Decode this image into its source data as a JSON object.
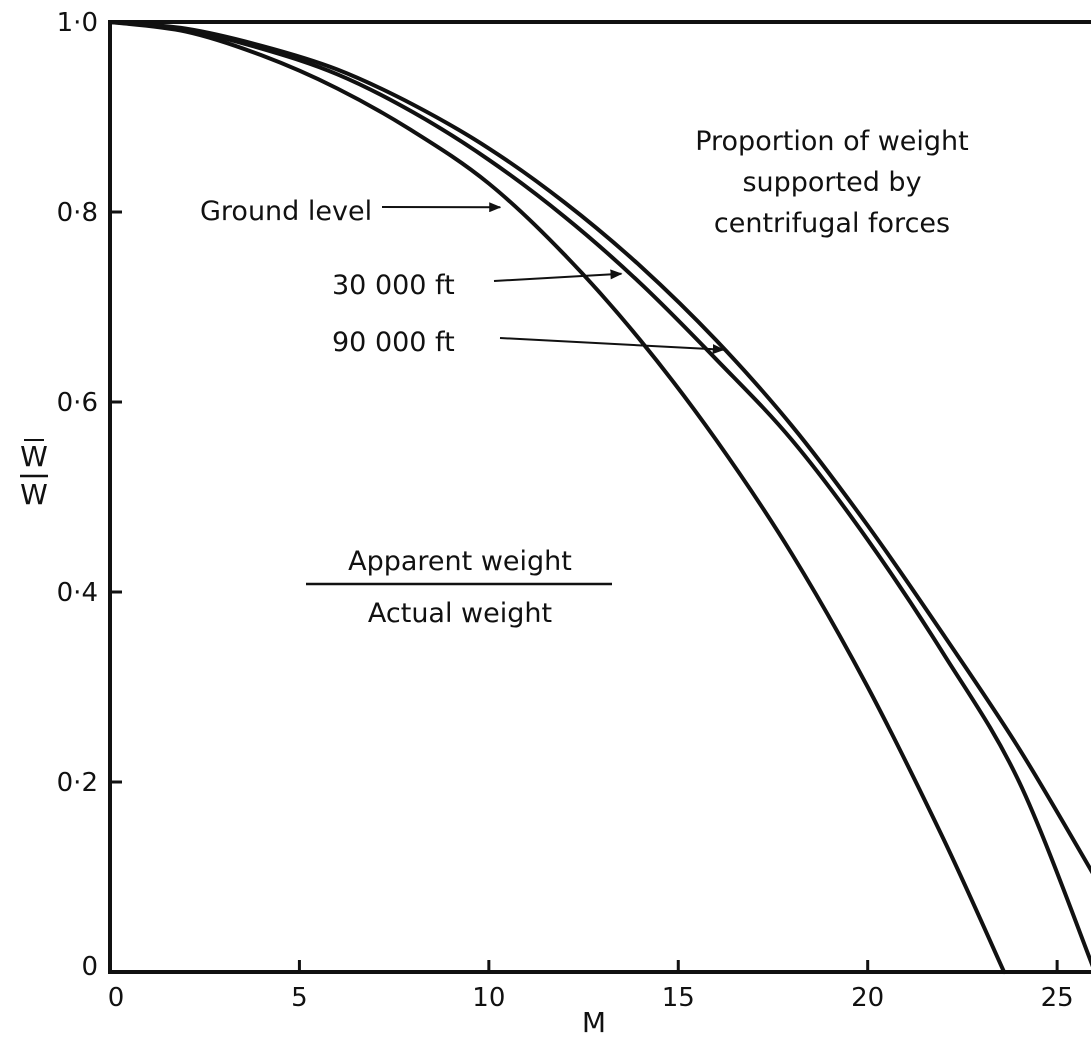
{
  "chart_data": {
    "type": "line",
    "xlabel": "M",
    "ylabel": "W̄/W",
    "ylabel_numerator": "W",
    "ylabel_denominator": "W",
    "xlim": [
      0,
      26
    ],
    "ylim": [
      0,
      1.0
    ],
    "grid": false,
    "legend": "none",
    "x_ticks": [
      0,
      5,
      10,
      15,
      20,
      25
    ],
    "x_tick_labels": [
      "0",
      "5",
      "10",
      "15",
      "20",
      "25"
    ],
    "y_ticks": [
      0,
      0.2,
      0.4,
      0.6,
      0.8,
      1.0
    ],
    "y_tick_labels": [
      "0",
      "0·2",
      "0·4",
      "0·6",
      "0·8",
      "1·0"
    ],
    "series": [
      {
        "name": "Ground level",
        "x": [
          0,
          2,
          4,
          6,
          8,
          10,
          12,
          14,
          16,
          18,
          20,
          22,
          23.6
        ],
        "y": [
          1.0,
          0.99,
          0.965,
          0.93,
          0.885,
          0.83,
          0.755,
          0.665,
          0.56,
          0.44,
          0.3,
          0.14,
          0.0
        ]
      },
      {
        "name": "30 000 ft",
        "x": [
          0,
          2,
          4,
          6,
          8,
          10,
          12,
          14,
          16,
          18,
          20,
          22,
          24,
          26
        ],
        "y": [
          1.0,
          0.992,
          0.972,
          0.945,
          0.905,
          0.855,
          0.795,
          0.725,
          0.645,
          0.56,
          0.455,
          0.335,
          0.2,
          0.0
        ]
      },
      {
        "name": "90 000 ft",
        "x": [
          0,
          2,
          4,
          6,
          8,
          10,
          12,
          14,
          16,
          18,
          20,
          22,
          24,
          26
        ],
        "y": [
          1.0,
          0.993,
          0.975,
          0.95,
          0.913,
          0.867,
          0.81,
          0.743,
          0.665,
          0.575,
          0.47,
          0.355,
          0.235,
          0.1
        ]
      }
    ],
    "annotations": [
      {
        "text": "Ground level",
        "target_x": 10.3,
        "target_y": 0.805
      },
      {
        "text": "30 000 ft",
        "target_x": 13.5,
        "target_y": 0.735
      },
      {
        "text": "90 000 ft",
        "target_x": 16.2,
        "target_y": 0.655
      },
      {
        "text": "Proportion of weight supported by centrifugal forces"
      },
      {
        "text": "Apparent weight / Actual weight"
      }
    ],
    "label_lines": {
      "proportion": [
        "Proportion of weight",
        "supported by",
        "centrifugal forces"
      ],
      "apparent": "Apparent weight",
      "actual": "Actual weight"
    }
  }
}
